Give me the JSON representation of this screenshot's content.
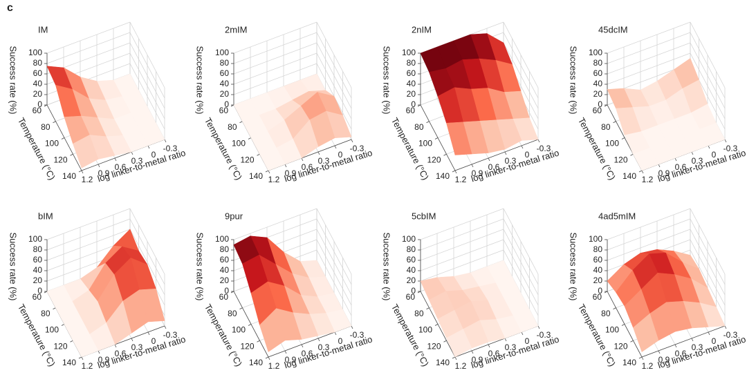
{
  "panel_label": "c",
  "chart_data": [
    {
      "type": "surface",
      "title": "IM",
      "xlabel": "log linker-to-metal ratio",
      "ylabel": "Temperature (°C)",
      "zlabel": "Success rate (%)",
      "x": [
        1.2,
        0.9,
        0.6,
        0.3,
        0,
        -0.3
      ],
      "y": [
        60,
        80,
        100,
        120,
        140
      ],
      "values": [
        [
          75,
          60,
          30,
          10,
          0,
          0
        ],
        [
          70,
          50,
          20,
          5,
          0,
          0
        ],
        [
          40,
          30,
          15,
          0,
          0,
          0
        ],
        [
          20,
          25,
          10,
          0,
          0,
          0
        ],
        [
          5,
          10,
          5,
          0,
          0,
          0
        ]
      ],
      "xlim": [
        -0.3,
        1.2
      ],
      "ylim": [
        60,
        140
      ],
      "zlim": [
        0,
        100
      ],
      "xticks": [
        1.2,
        0.9,
        0.6,
        0.3,
        0,
        -0.3
      ],
      "yticks": [
        60,
        80,
        100,
        120,
        140
      ],
      "zticks": [
        0,
        20,
        40,
        60,
        80,
        100
      ],
      "colormap": [
        "#fff5f0",
        "#fcbba1",
        "#fb6a4a",
        "#cb181d",
        "#67000d"
      ],
      "grid": true
    },
    {
      "type": "surface",
      "title": "2mIM",
      "xlabel": "log linker-to-metal ratio",
      "ylabel": "Temperature (°C)",
      "zlabel": "Success rate (%)",
      "x": [
        1.2,
        0.9,
        0.6,
        0.3,
        0,
        -0.3
      ],
      "y": [
        60,
        80,
        100,
        120,
        140
      ],
      "values": [
        [
          0,
          0,
          0,
          0,
          0,
          0
        ],
        [
          0,
          0,
          0,
          5,
          10,
          0
        ],
        [
          0,
          0,
          10,
          25,
          40,
          20
        ],
        [
          0,
          0,
          5,
          30,
          35,
          15
        ],
        [
          0,
          0,
          0,
          10,
          15,
          5
        ]
      ],
      "xlim": [
        -0.3,
        1.2
      ],
      "ylim": [
        60,
        140
      ],
      "zlim": [
        0,
        100
      ],
      "xticks": [
        1.2,
        0.9,
        0.6,
        0.3,
        0,
        -0.3
      ],
      "yticks": [
        60,
        80,
        100,
        120,
        140
      ],
      "zticks": [
        0,
        20,
        40,
        60,
        80,
        100
      ],
      "colormap": [
        "#fff5f0",
        "#fcbba1",
        "#fb6a4a",
        "#cb181d",
        "#67000d"
      ],
      "grid": true
    },
    {
      "type": "surface",
      "title": "2nIM",
      "xlabel": "log linker-to-metal ratio",
      "ylabel": "Temperature (°C)",
      "zlabel": "Success rate (%)",
      "x": [
        1.2,
        0.9,
        0.6,
        0.3,
        0,
        -0.3
      ],
      "y": [
        60,
        80,
        100,
        120,
        140
      ],
      "values": [
        [
          100,
          100,
          100,
          100,
          90,
          60
        ],
        [
          95,
          90,
          95,
          85,
          70,
          50
        ],
        [
          80,
          85,
          70,
          60,
          40,
          30
        ],
        [
          60,
          50,
          40,
          30,
          20,
          10
        ],
        [
          30,
          20,
          10,
          5,
          10,
          0
        ]
      ],
      "xlim": [
        -0.3,
        1.2
      ],
      "ylim": [
        60,
        140
      ],
      "zlim": [
        0,
        100
      ],
      "xticks": [
        1.2,
        0.9,
        0.6,
        0.3,
        0,
        -0.3
      ],
      "yticks": [
        60,
        80,
        100,
        120,
        140
      ],
      "zticks": [
        0,
        20,
        40,
        60,
        80,
        100
      ],
      "colormap": [
        "#fff5f0",
        "#fcbba1",
        "#fb6a4a",
        "#cb181d",
        "#67000d"
      ],
      "grid": true
    },
    {
      "type": "surface",
      "title": "45dcIM",
      "xlabel": "log linker-to-metal ratio",
      "ylabel": "Temperature (°C)",
      "zlabel": "Success rate (%)",
      "x": [
        1.2,
        0.9,
        0.6,
        0.3,
        0,
        -0.3
      ],
      "y": [
        60,
        80,
        100,
        120,
        140
      ],
      "values": [
        [
          30,
          20,
          5,
          10,
          20,
          30
        ],
        [
          25,
          15,
          5,
          5,
          15,
          20
        ],
        [
          5,
          0,
          0,
          0,
          0,
          5
        ],
        [
          0,
          0,
          0,
          0,
          0,
          0
        ],
        [
          0,
          0,
          0,
          0,
          0,
          0
        ]
      ],
      "xlim": [
        -0.3,
        1.2
      ],
      "ylim": [
        60,
        140
      ],
      "zlim": [
        0,
        100
      ],
      "xticks": [
        1.2,
        0.9,
        0.6,
        0.3,
        0,
        -0.3
      ],
      "yticks": [
        60,
        80,
        100,
        120,
        140
      ],
      "zticks": [
        0,
        20,
        40,
        60,
        80,
        100
      ],
      "colormap": [
        "#fff5f0",
        "#fcbba1",
        "#fb6a4a",
        "#cb181d",
        "#67000d"
      ],
      "grid": true
    },
    {
      "type": "surface",
      "title": "bIM",
      "xlabel": "log linker-to-metal ratio",
      "ylabel": "Temperature (°C)",
      "zlabel": "Success rate (%)",
      "x": [
        1.2,
        0.9,
        0.6,
        0.3,
        0,
        -0.3
      ],
      "y": [
        60,
        80,
        100,
        120,
        140
      ],
      "values": [
        [
          0,
          0,
          0,
          10,
          40,
          60
        ],
        [
          0,
          0,
          10,
          50,
          70,
          50
        ],
        [
          0,
          0,
          20,
          60,
          80,
          55
        ],
        [
          0,
          0,
          10,
          40,
          50,
          40
        ],
        [
          0,
          0,
          0,
          10,
          20,
          10
        ]
      ],
      "xlim": [
        -0.3,
        1.2
      ],
      "ylim": [
        60,
        140
      ],
      "zlim": [
        0,
        100
      ],
      "xticks": [
        1.2,
        0.9,
        0.6,
        0.3,
        0,
        -0.3
      ],
      "yticks": [
        60,
        80,
        100,
        120,
        140
      ],
      "zticks": [
        0,
        20,
        40,
        60,
        80,
        100
      ],
      "colormap": [
        "#fff5f0",
        "#fcbba1",
        "#fb6a4a",
        "#cb181d",
        "#67000d"
      ],
      "grid": true
    },
    {
      "type": "surface",
      "title": "9pur",
      "xlabel": "log linker-to-metal ratio",
      "ylabel": "Temperature (°C)",
      "zlabel": "Success rate (%)",
      "x": [
        1.2,
        0.9,
        0.6,
        0.3,
        0,
        -0.3
      ],
      "y": [
        60,
        80,
        100,
        120,
        140
      ],
      "values": [
        [
          90,
          95,
          80,
          40,
          10,
          0
        ],
        [
          85,
          90,
          60,
          30,
          10,
          0
        ],
        [
          60,
          70,
          50,
          20,
          5,
          0
        ],
        [
          30,
          50,
          30,
          15,
          5,
          0
        ],
        [
          10,
          20,
          10,
          5,
          0,
          0
        ]
      ],
      "xlim": [
        -0.3,
        1.2
      ],
      "ylim": [
        60,
        140
      ],
      "zlim": [
        0,
        100
      ],
      "xticks": [
        1.2,
        0.9,
        0.6,
        0.3,
        0,
        -0.3
      ],
      "yticks": [
        60,
        80,
        100,
        120,
        140
      ],
      "zticks": [
        0,
        20,
        40,
        60,
        80,
        100
      ],
      "colormap": [
        "#fff5f0",
        "#fcbba1",
        "#fb6a4a",
        "#cb181d",
        "#67000d"
      ],
      "grid": true
    },
    {
      "type": "surface",
      "title": "5cbIM",
      "xlabel": "log linker-to-metal ratio",
      "ylabel": "Temperature (°C)",
      "zlabel": "Success rate (%)",
      "x": [
        1.2,
        0.9,
        0.6,
        0.3,
        0,
        -0.3
      ],
      "y": [
        60,
        80,
        100,
        120,
        140
      ],
      "values": [
        [
          20,
          15,
          5,
          0,
          0,
          0
        ],
        [
          15,
          20,
          10,
          5,
          0,
          0
        ],
        [
          10,
          15,
          20,
          10,
          0,
          0
        ],
        [
          5,
          10,
          15,
          5,
          0,
          0
        ],
        [
          0,
          5,
          5,
          0,
          0,
          0
        ]
      ],
      "xlim": [
        -0.3,
        1.2
      ],
      "ylim": [
        60,
        140
      ],
      "zlim": [
        0,
        100
      ],
      "xticks": [
        1.2,
        0.9,
        0.6,
        0.3,
        0,
        -0.3
      ],
      "yticks": [
        60,
        80,
        100,
        120,
        140
      ],
      "zticks": [
        0,
        20,
        40,
        60,
        80,
        100
      ],
      "colormap": [
        "#fff5f0",
        "#fcbba1",
        "#fb6a4a",
        "#cb181d",
        "#67000d"
      ],
      "grid": true
    },
    {
      "type": "surface",
      "title": "4ad5mIM",
      "xlabel": "log linker-to-metal ratio",
      "ylabel": "Temperature (°C)",
      "zlabel": "Success rate (%)",
      "x": [
        1.2,
        0.9,
        0.6,
        0.3,
        0,
        -0.3
      ],
      "y": [
        60,
        80,
        100,
        120,
        140
      ],
      "values": [
        [
          20,
          40,
          50,
          45,
          30,
          10
        ],
        [
          30,
          60,
          80,
          70,
          40,
          15
        ],
        [
          35,
          55,
          75,
          60,
          40,
          10
        ],
        [
          25,
          40,
          50,
          40,
          25,
          5
        ],
        [
          10,
          20,
          25,
          20,
          10,
          0
        ]
      ],
      "xlim": [
        -0.3,
        1.2
      ],
      "ylim": [
        60,
        140
      ],
      "zlim": [
        0,
        100
      ],
      "xticks": [
        1.2,
        0.9,
        0.6,
        0.3,
        0,
        -0.3
      ],
      "yticks": [
        60,
        80,
        100,
        120,
        140
      ],
      "zticks": [
        0,
        20,
        40,
        60,
        80,
        100
      ],
      "colormap": [
        "#fff5f0",
        "#fcbba1",
        "#fb6a4a",
        "#cb181d",
        "#67000d"
      ],
      "grid": true
    }
  ]
}
